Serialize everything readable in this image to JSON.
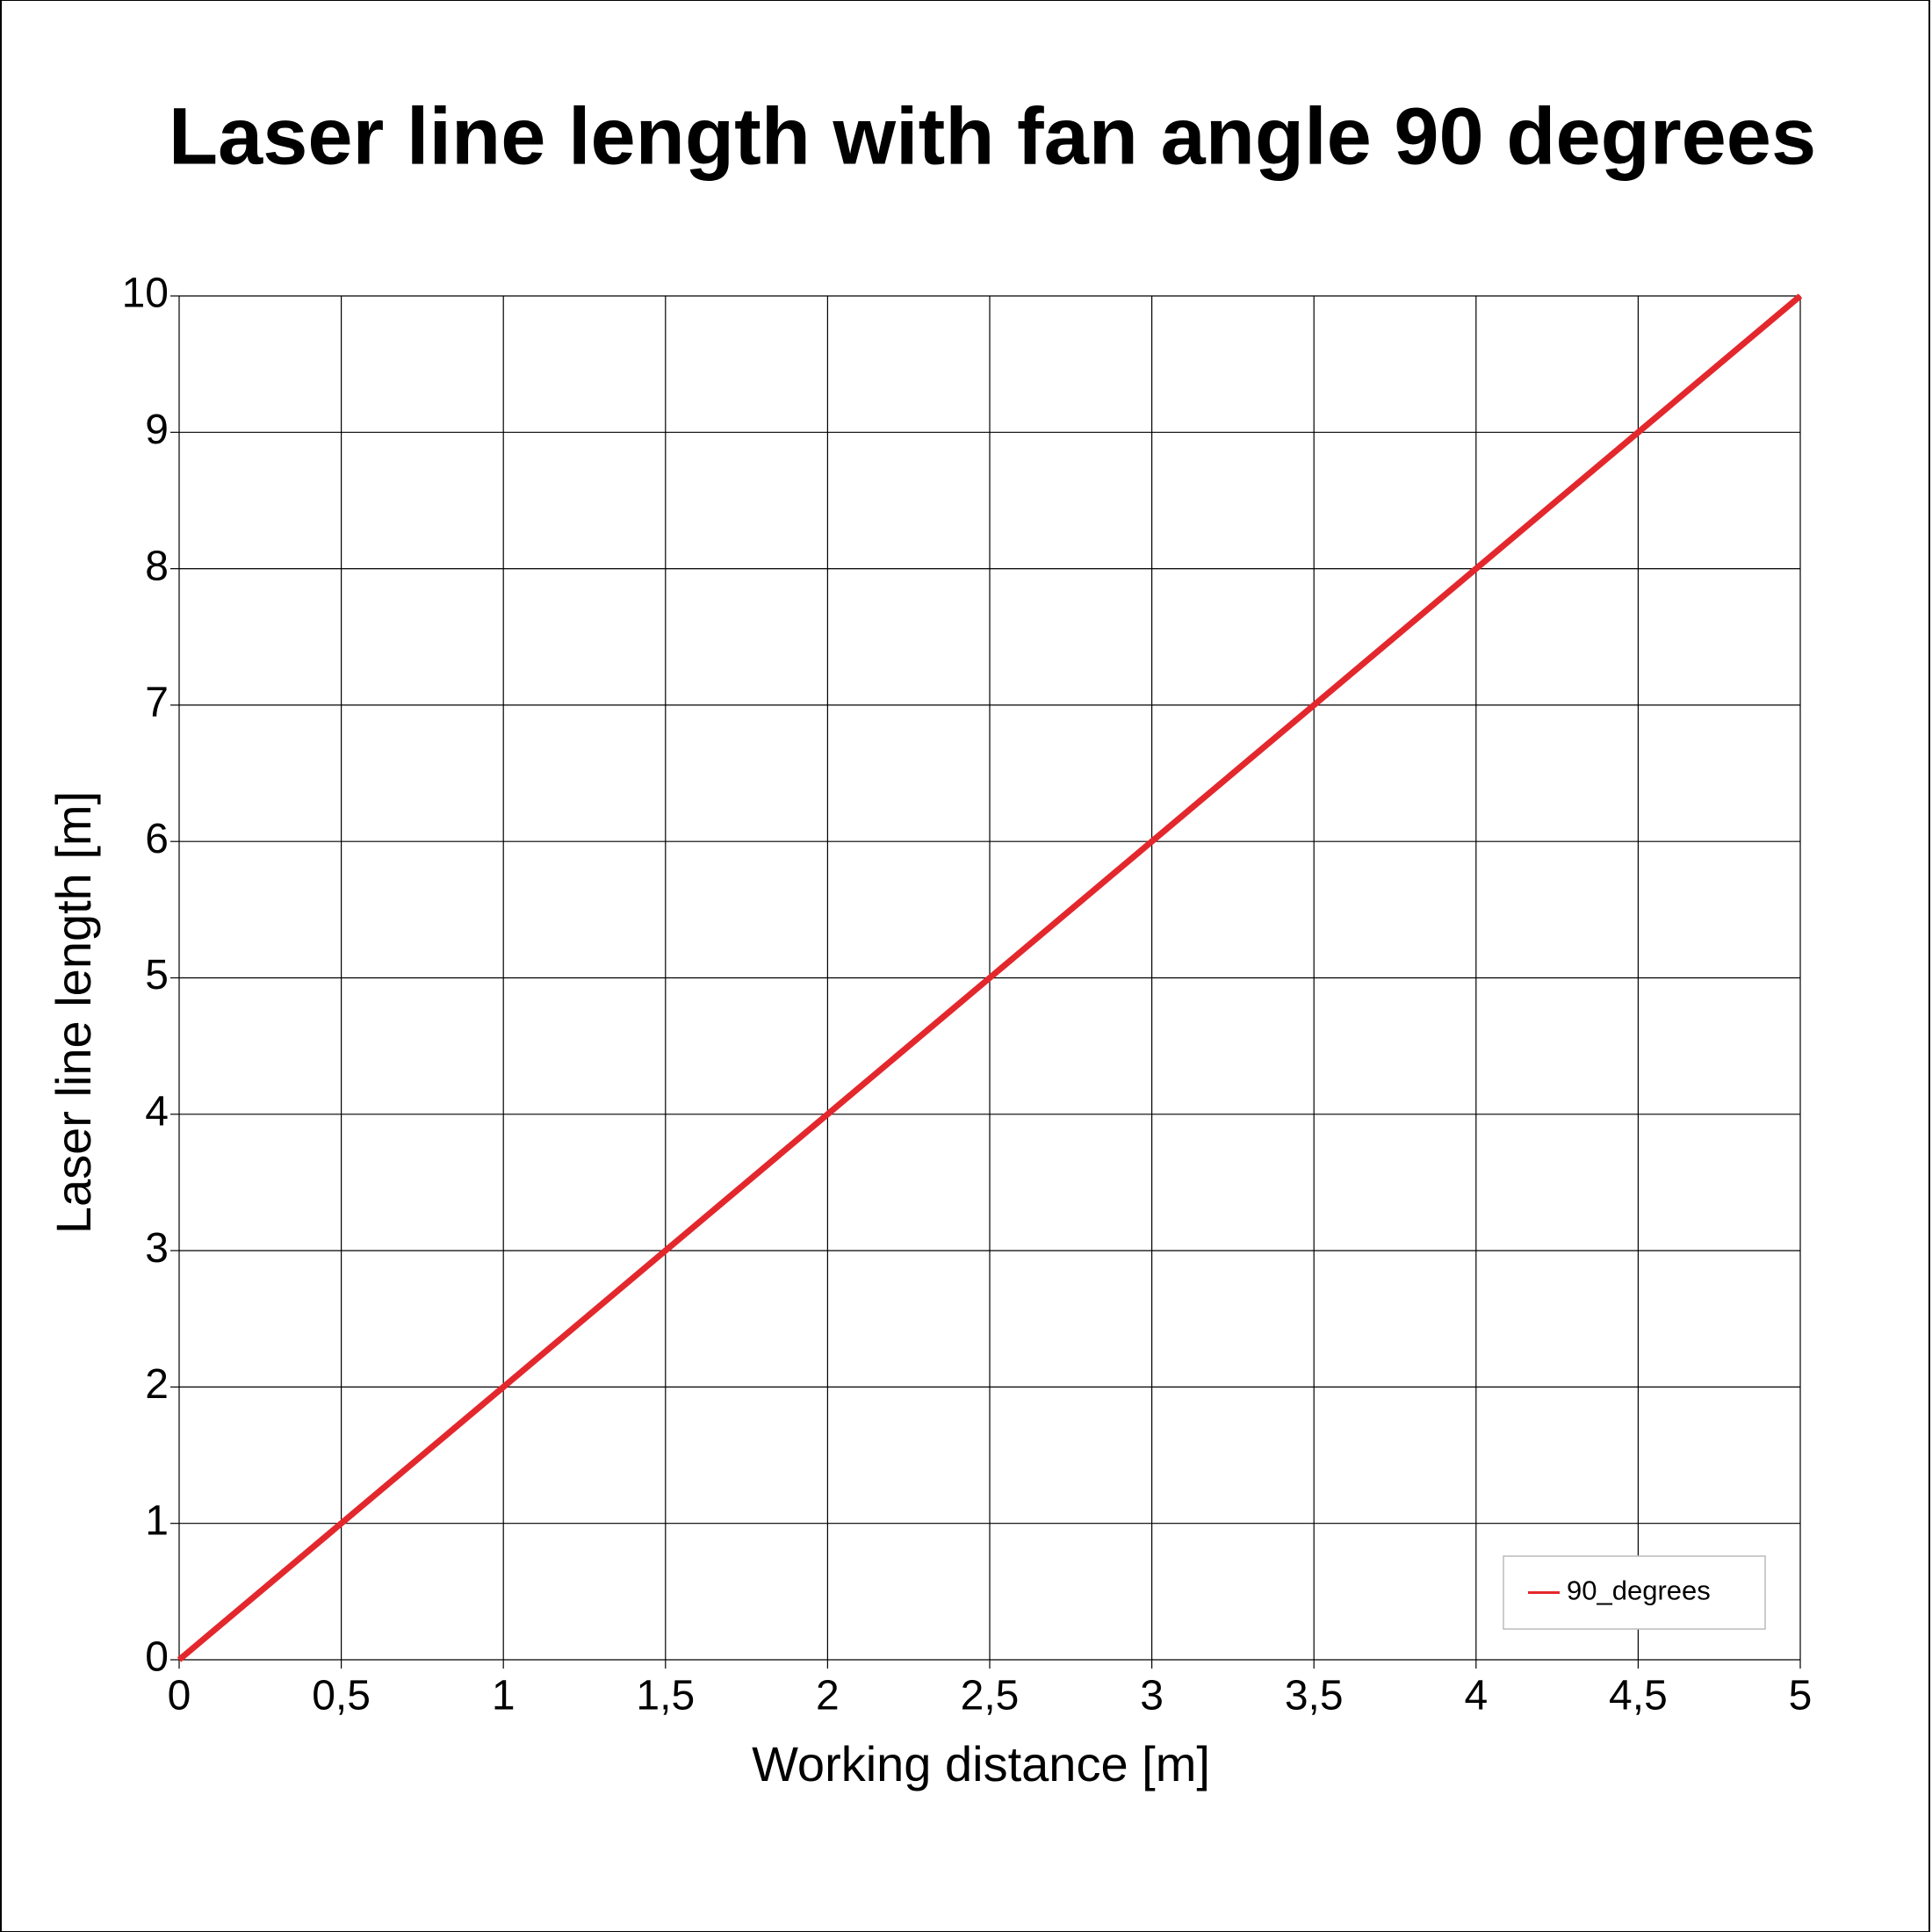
{
  "chart_data": {
    "type": "line",
    "title": "Laser line length with fan angle 90 degrees",
    "x_label": "Working distance [m]",
    "y_label": "Laser line length [m]",
    "x": [
      0,
      0.5,
      1,
      1.5,
      2,
      2.5,
      3,
      3.5,
      4,
      4.5,
      5
    ],
    "series": [
      {
        "name": "90_degrees",
        "color": "#e3282d",
        "values": [
          0,
          1,
          2,
          3,
          4,
          5,
          6,
          7,
          8,
          9,
          10
        ]
      }
    ],
    "xlim": [
      0,
      5
    ],
    "ylim": [
      0,
      10
    ],
    "xticks": [
      0,
      {
        "value": 0.5,
        "label": "0,5"
      },
      1,
      {
        "value": 1.5,
        "label": "1,5"
      },
      2,
      {
        "value": 2.5,
        "label": "2,5"
      },
      3,
      {
        "value": 3.5,
        "label": "3,5"
      },
      4,
      {
        "value": 4.5,
        "label": "4,5"
      },
      5
    ],
    "yticks": [
      0,
      1,
      2,
      3,
      4,
      5,
      6,
      7,
      8,
      9,
      10
    ],
    "grid": true,
    "legend": "bottom-right"
  }
}
